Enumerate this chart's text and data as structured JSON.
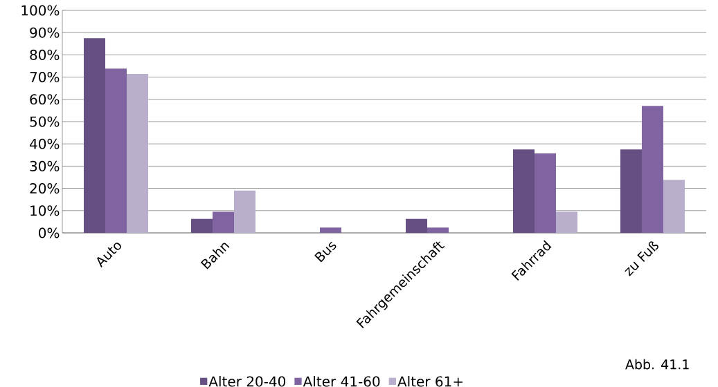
{
  "chart_data": {
    "type": "bar",
    "categories": [
      "Auto",
      "Bahn",
      "Bus",
      "Fahrgemeinschaft",
      "Fahrrad",
      "zu Fuß"
    ],
    "series": [
      {
        "name": "Alter 20-40",
        "color": "#664f82",
        "values": [
          87.5,
          6.3,
          0,
          6.3,
          37.5,
          37.5
        ]
      },
      {
        "name": "Alter 41-60",
        "color": "#8064a2",
        "values": [
          73.8,
          9.5,
          2.4,
          2.4,
          35.7,
          57.1
        ]
      },
      {
        "name": "Alter 61+",
        "color": "#b9aecc",
        "values": [
          71.4,
          19.0,
          0,
          0,
          9.5,
          23.8
        ]
      }
    ],
    "ylim": [
      0,
      100
    ],
    "yticks": [
      {
        "value": 0,
        "label": "0%"
      },
      {
        "value": 10,
        "label": "10%"
      },
      {
        "value": 20,
        "label": "20%"
      },
      {
        "value": 30,
        "label": "30%"
      },
      {
        "value": 40,
        "label": "40%"
      },
      {
        "value": 50,
        "label": "50%"
      },
      {
        "value": 60,
        "label": "60%"
      },
      {
        "value": 70,
        "label": "70%"
      },
      {
        "value": 80,
        "label": "80%"
      },
      {
        "value": 90,
        "label": "90%"
      },
      {
        "value": 100,
        "label": "100%"
      }
    ],
    "grid": "y",
    "legend": "bottom",
    "annotations": [
      "Abb. 41.1"
    ]
  }
}
